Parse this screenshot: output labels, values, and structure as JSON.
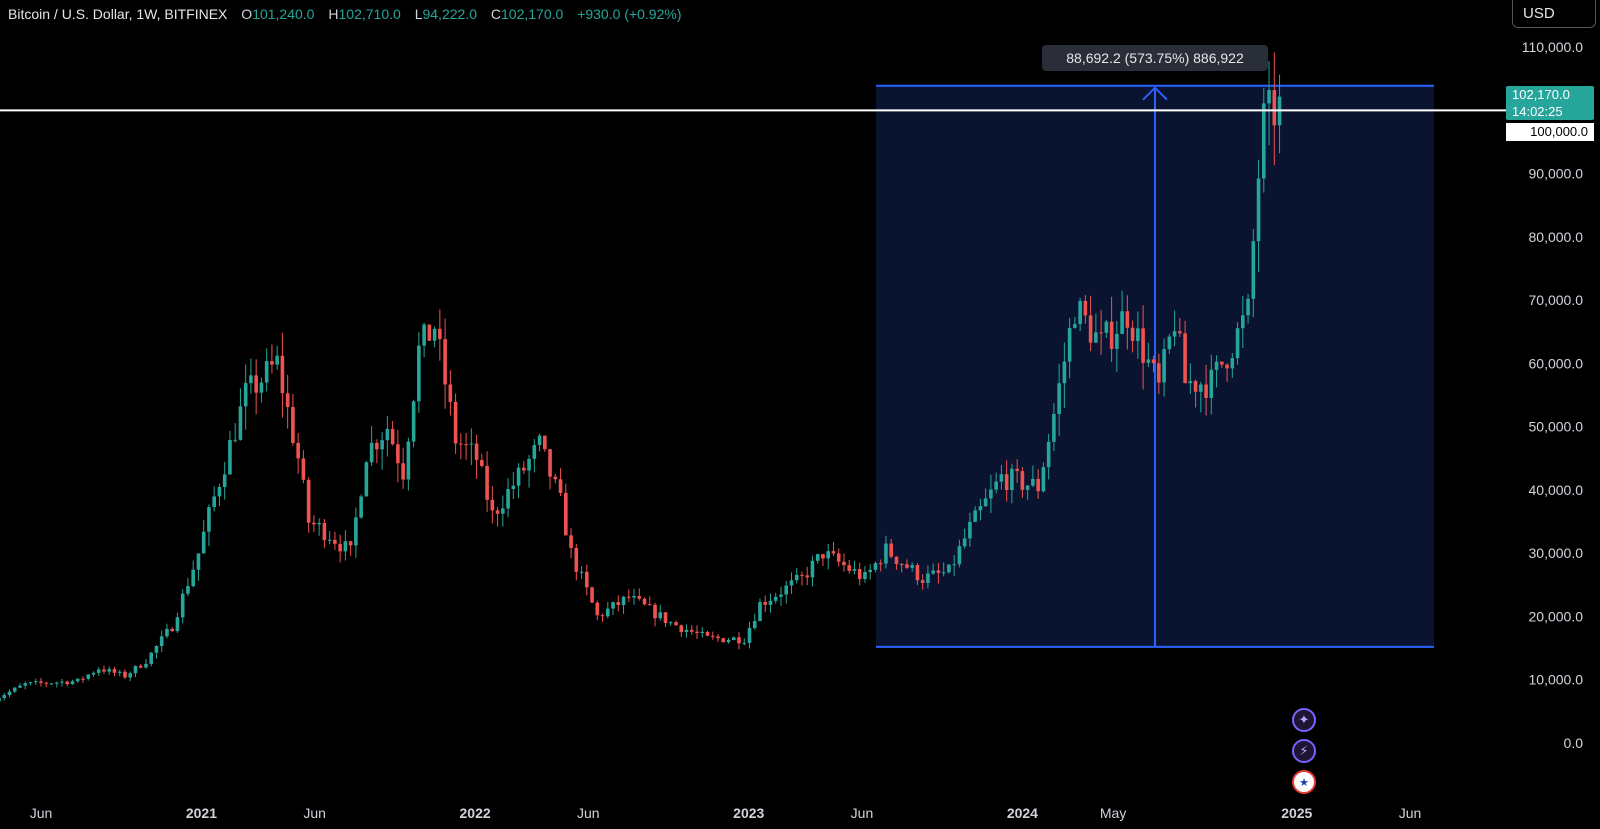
{
  "legend": {
    "symbol": "Bitcoin / U.S. Dollar, 1W, BITFINEX",
    "o_label": "O",
    "o_value": "101,240.0",
    "h_label": "H",
    "h_value": "102,710.0",
    "l_label": "L",
    "l_value": "94,222.0",
    "c_label": "C",
    "c_value": "102,170.0",
    "change": "+930.0 (+0.92%)"
  },
  "currency": "USD",
  "measure_label": "88,692.2 (573.75%) 886,922",
  "price_tag": {
    "price": "102,170.0",
    "countdown": "14:02:25"
  },
  "hline_label": "100,000.0",
  "icons": [
    "sparkle-icon",
    "lightning-icon",
    "us-flag-icon"
  ],
  "colors": {
    "up": "#26a69a",
    "down": "#ef5350",
    "measure": "#2962ff",
    "measure_fill": "#0a1430",
    "bg": "#000000"
  },
  "chart_data": {
    "type": "candlestick",
    "yticks": [
      0,
      10000,
      20000,
      30000,
      40000,
      50000,
      60000,
      70000,
      80000,
      90000,
      110000
    ],
    "ytick_labels": [
      "0.0",
      "10,000.0",
      "20,000.0",
      "30,000.0",
      "40,000.0",
      "50,000.0",
      "60,000.0",
      "70,000.0",
      "80,000.0",
      "90,000.0",
      "110,000.0"
    ],
    "xticks": [
      {
        "label": "Jun",
        "date": "2020-06-01",
        "bold": false
      },
      {
        "label": "2021",
        "date": "2021-01-01",
        "bold": true
      },
      {
        "label": "Jun",
        "date": "2021-06-01",
        "bold": false
      },
      {
        "label": "2022",
        "date": "2022-01-01",
        "bold": true
      },
      {
        "label": "Jun",
        "date": "2022-06-01",
        "bold": false
      },
      {
        "label": "2023",
        "date": "2023-01-01",
        "bold": true
      },
      {
        "label": "Jun",
        "date": "2023-06-01",
        "bold": false
      },
      {
        "label": "2024",
        "date": "2024-01-01",
        "bold": true
      },
      {
        "label": "May",
        "date": "2024-05-01",
        "bold": false
      },
      {
        "label": "2025",
        "date": "2025-01-01",
        "bold": true
      },
      {
        "label": "Jun",
        "date": "2025-06-01",
        "bold": false
      }
    ],
    "ylim": [
      -10000,
      115000
    ],
    "start_date": "2020-03-30",
    "horizontal_line": 100000,
    "last_price": 102170,
    "measure": {
      "x_start": "2023-06-01",
      "x_end": "2025-06-01",
      "y_low": 15200,
      "y_high": 103900
    },
    "weekly_close_anchors": [
      [
        "2020-03-30",
        6900
      ],
      [
        "2020-05-11",
        9300
      ],
      [
        "2020-07-20",
        9800
      ],
      [
        "2020-08-17",
        11800
      ],
      [
        "2020-09-21",
        10600
      ],
      [
        "2020-10-19",
        13000
      ],
      [
        "2020-11-23",
        18500
      ],
      [
        "2020-12-28",
        30000
      ],
      [
        "2021-01-11",
        36000
      ],
      [
        "2021-02-08",
        47000
      ],
      [
        "2021-03-01",
        55000
      ],
      [
        "2021-04-12",
        60000
      ],
      [
        "2021-05-10",
        45000
      ],
      [
        "2021-05-24",
        35000
      ],
      [
        "2021-06-21",
        33000
      ],
      [
        "2021-07-19",
        30000
      ],
      [
        "2021-08-09",
        46000
      ],
      [
        "2021-09-06",
        50000
      ],
      [
        "2021-09-27",
        43000
      ],
      [
        "2021-10-18",
        62000
      ],
      [
        "2021-11-08",
        66000
      ],
      [
        "2021-12-06",
        48000
      ],
      [
        "2022-01-03",
        45000
      ],
      [
        "2022-01-24",
        36000
      ],
      [
        "2022-03-28",
        47000
      ],
      [
        "2022-04-25",
        38000
      ],
      [
        "2022-05-09",
        30000
      ],
      [
        "2022-06-13",
        20000
      ],
      [
        "2022-07-25",
        23000
      ],
      [
        "2022-09-19",
        19000
      ],
      [
        "2022-11-07",
        16500
      ],
      [
        "2022-12-26",
        16500
      ],
      [
        "2023-01-16",
        22000
      ],
      [
        "2023-03-13",
        26000
      ],
      [
        "2023-04-10",
        30000
      ],
      [
        "2023-06-05",
        26000
      ],
      [
        "2023-07-03",
        30500
      ],
      [
        "2023-08-21",
        26000
      ],
      [
        "2023-09-25",
        27000
      ],
      [
        "2023-10-23",
        34000
      ],
      [
        "2023-12-04",
        42000
      ],
      [
        "2024-01-22",
        40500
      ],
      [
        "2024-02-12",
        52000
      ],
      [
        "2024-03-11",
        69000
      ],
      [
        "2024-04-15",
        63000
      ],
      [
        "2024-05-20",
        68000
      ],
      [
        "2024-07-01",
        56000
      ],
      [
        "2024-07-22",
        67000
      ],
      [
        "2024-08-05",
        57000
      ],
      [
        "2024-09-09",
        57000
      ],
      [
        "2024-10-07",
        63000
      ],
      [
        "2024-10-28",
        68000
      ],
      [
        "2024-11-11",
        90000
      ],
      [
        "2024-11-18",
        98000
      ],
      [
        "2024-12-02",
        100000
      ],
      [
        "2024-12-09",
        102170
      ]
    ]
  }
}
